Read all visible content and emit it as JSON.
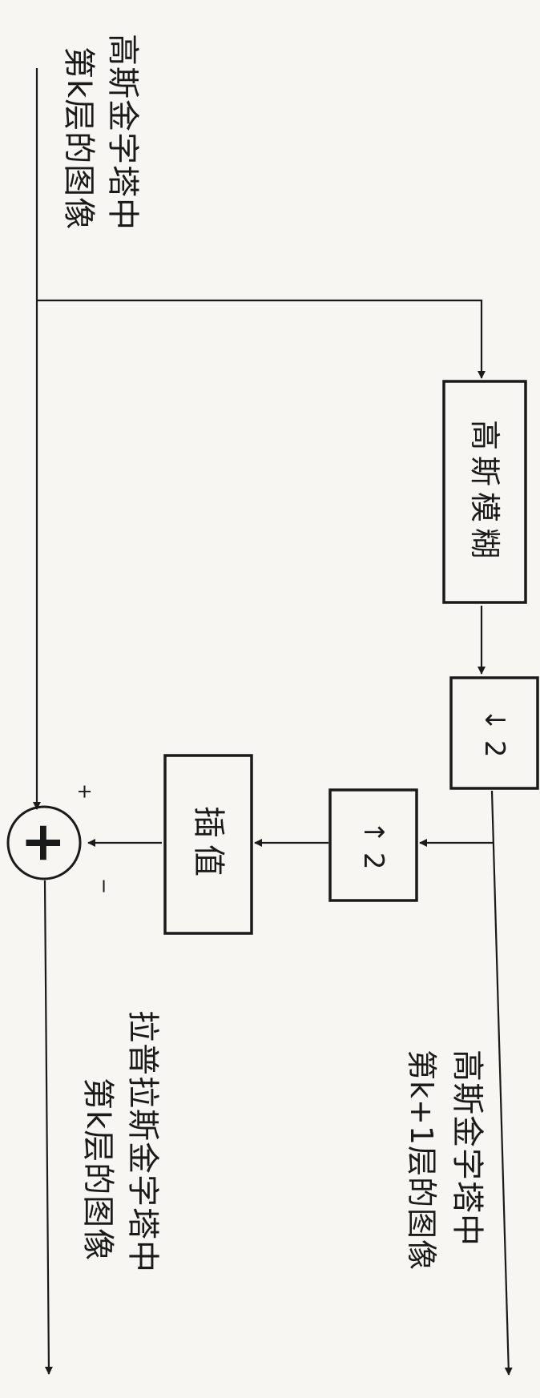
{
  "input_label": {
    "line1": "高斯金字塔中",
    "line2": "第k层的图像"
  },
  "blocks": {
    "gaussian_blur": "高斯模糊",
    "downsample": "↓ 2",
    "upsample": "↑ 2",
    "interpolate": "插值"
  },
  "summing_node": {
    "symbol": "+",
    "plus_sign": "+",
    "minus_sign": "−"
  },
  "output_gaussian": {
    "line1": "高斯金字塔中",
    "line2": "第k+1层的图像"
  },
  "output_laplacian": {
    "line1": "拉普拉斯金字塔中",
    "line2": "第k层的图像"
  }
}
